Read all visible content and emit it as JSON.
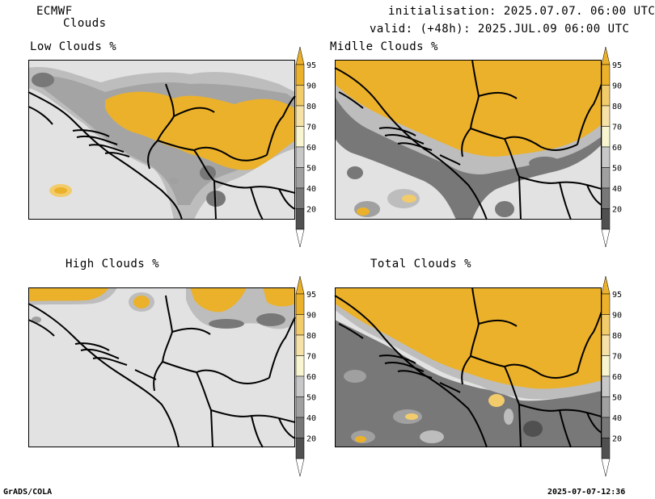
{
  "header": {
    "model": "ECMWF",
    "product": "Clouds",
    "init_line": "initialisation: 2025.07.07. 06:00 UTC",
    "valid_line": "valid: (+48h): 2025.JUL.09 06:00 UTC"
  },
  "panels": [
    {
      "id": "low",
      "title": "Low Clouds %"
    },
    {
      "id": "middle",
      "title": "Midlle Clouds %"
    },
    {
      "id": "high",
      "title": "High Clouds %"
    },
    {
      "id": "total",
      "title": "Total Clouds %"
    }
  ],
  "colorbar": {
    "levels": [
      "95",
      "90",
      "80",
      "70",
      "60",
      "50",
      "40",
      "20"
    ],
    "colors": [
      "#EBB12A",
      "#F2CB6B",
      "#F6E2A6",
      "#F8F5D0",
      "#C8C8C8",
      "#A0A0A0",
      "#787878",
      "#505050"
    ]
  },
  "colors": {
    "map_background": "#E2E2E2",
    "cloud_high": "#EBB12A",
    "border": "#000000"
  },
  "footer": {
    "left": "GrADS/COLA",
    "right": "2025-07-07-12:36"
  }
}
